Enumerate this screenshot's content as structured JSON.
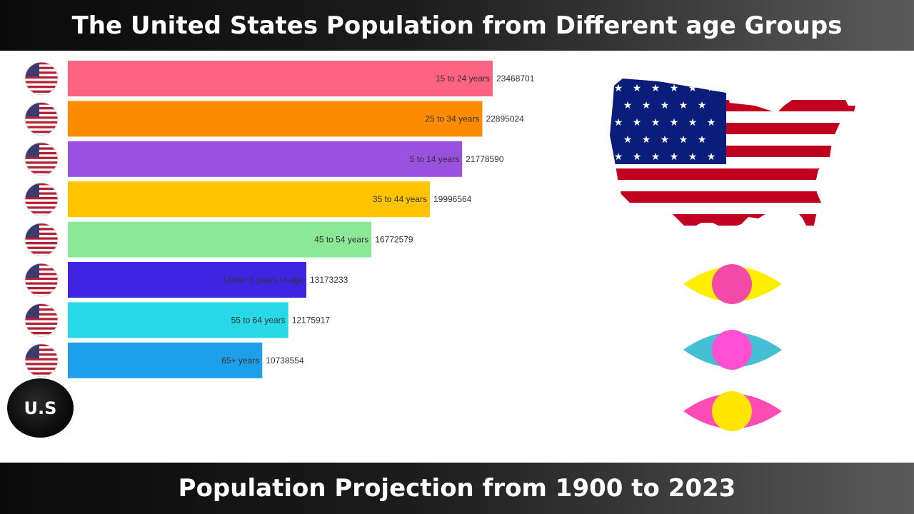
{
  "header": {
    "title": "The United States Population from Different age Groups"
  },
  "footer": {
    "subtitle": "Population Projection from 1900 to 2023"
  },
  "badge": {
    "label": "U.S"
  },
  "chart_data": {
    "type": "bar",
    "orientation": "horizontal",
    "categories": [
      "15 to 24 years",
      "25 to 34 years",
      "5 to 14 years",
      "35 to 44 years",
      "45 to 54 years",
      "Under 5 years of age",
      "55 to 64 years",
      "65+ years"
    ],
    "values": [
      23468701,
      22895024,
      21778590,
      19996564,
      16772579,
      13173233,
      12175917,
      10738554
    ],
    "colors": [
      "#ff6384",
      "#ff8c00",
      "#9b51e0",
      "#ffc300",
      "#8be896",
      "#3f25e3",
      "#28d8e6",
      "#1e9fea"
    ],
    "xlim": [
      0,
      23468701
    ],
    "grid": false,
    "icon": "us-flag-icon"
  },
  "decor": {
    "eye_colors": [
      {
        "outer": "#ffee00",
        "inner": "#f34aa8"
      },
      {
        "outer": "#45bfd4",
        "inner": "#ff4fd3"
      },
      {
        "outer": "#ff4cb5",
        "inner": "#ffe600"
      }
    ]
  }
}
